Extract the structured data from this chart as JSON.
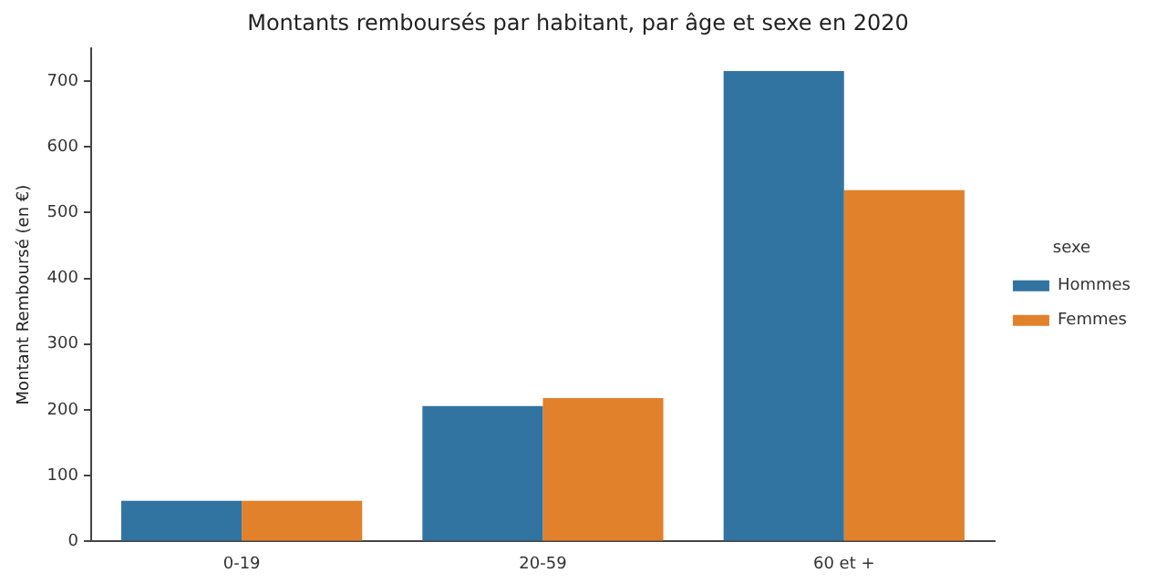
{
  "chart_data": {
    "type": "bar",
    "title": "Montants remboursés par habitant, par âge et sexe en 2020",
    "ylabel": "Montant Remboursé (en €)",
    "legend_title": "sexe",
    "categories": [
      "0-19",
      "20-59",
      "60 et +"
    ],
    "series": [
      {
        "name": "Hommes",
        "color": "#3274a1",
        "values": [
          62,
          206,
          715
        ]
      },
      {
        "name": "Femmes",
        "color": "#e1812c",
        "values": [
          62,
          218,
          534
        ]
      }
    ],
    "ylim": [
      0,
      750
    ],
    "yticks": [
      0,
      100,
      200,
      300,
      400,
      500,
      600,
      700
    ],
    "grid": false,
    "legend": "right"
  }
}
